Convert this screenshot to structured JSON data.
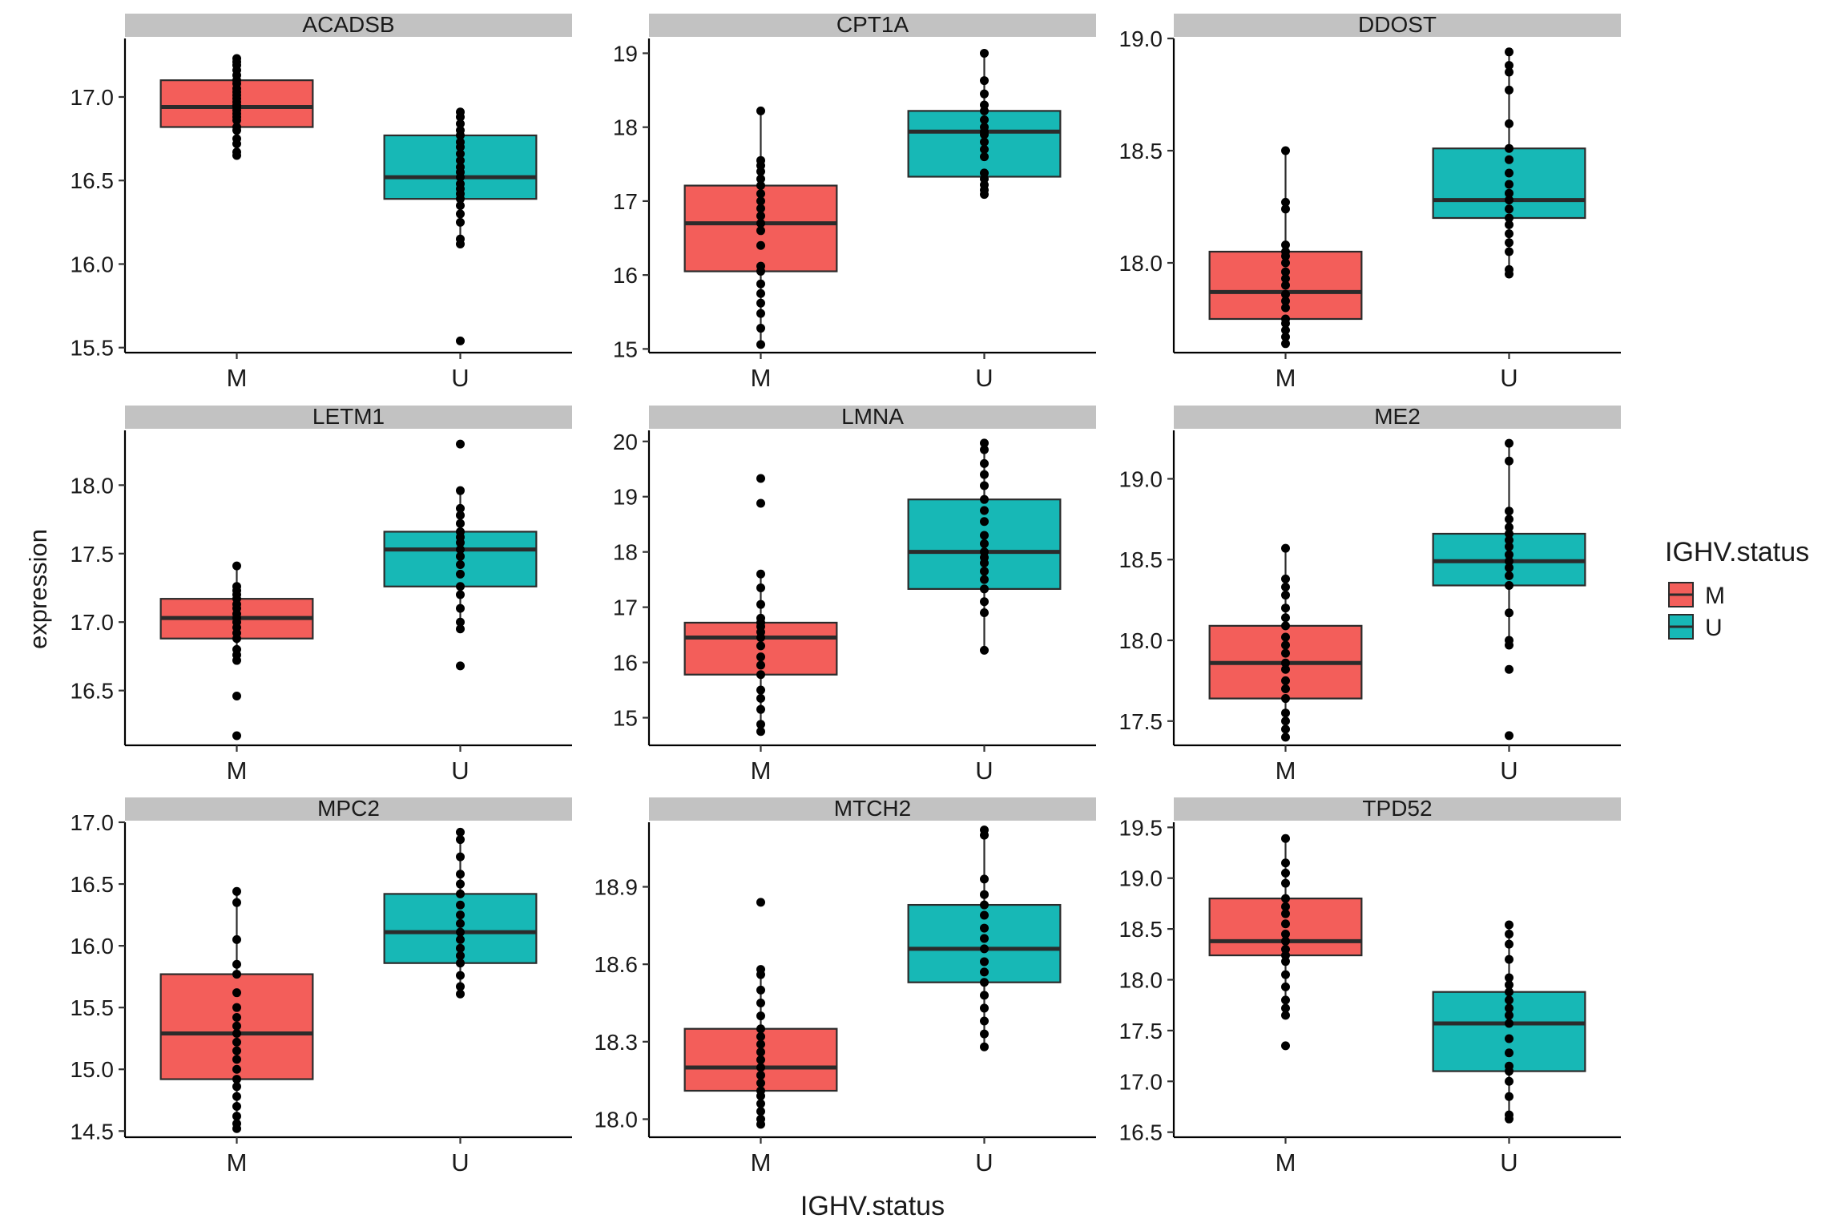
{
  "colors": {
    "M": "#F35E5A",
    "U": "#17B8B6",
    "strip": "#C2C2C2"
  },
  "chart_data": {
    "type": "box",
    "xlabel": "IGHV.status",
    "ylabel": "expression",
    "legend": {
      "title": "IGHV.status",
      "position": "right",
      "entries": [
        "M",
        "U"
      ]
    },
    "categories": [
      "M",
      "U"
    ],
    "panels": [
      {
        "title": "ACADSB",
        "ylim": [
          15.47,
          17.35
        ],
        "yticks": [
          15.5,
          16.0,
          16.5,
          17.0
        ],
        "ytick_labels": [
          "15.5",
          "16.0",
          "16.5",
          "17.0"
        ],
        "groups": [
          {
            "name": "M",
            "q1": 16.82,
            "median": 16.94,
            "q3": 17.1,
            "whisker_low": 16.65,
            "whisker_high": 17.23,
            "points": [
              16.65,
              16.67,
              16.72,
              16.75,
              16.8,
              16.82,
              16.86,
              16.88,
              16.9,
              16.92,
              16.94,
              16.95,
              16.97,
              16.99,
              17.01,
              17.03,
              17.05,
              17.08,
              17.1,
              17.13,
              17.16,
              17.19,
              17.21,
              17.23
            ]
          },
          {
            "name": "U",
            "q1": 16.39,
            "median": 16.52,
            "q3": 16.77,
            "whisker_low": 16.12,
            "whisker_high": 16.91,
            "points": [
              15.54,
              16.12,
              16.15,
              16.25,
              16.3,
              16.35,
              16.39,
              16.42,
              16.45,
              16.48,
              16.52,
              16.55,
              16.58,
              16.62,
              16.66,
              16.7,
              16.73,
              16.77,
              16.8,
              16.84,
              16.88,
              16.91
            ]
          }
        ]
      },
      {
        "title": "CPT1A",
        "ylim": [
          14.95,
          19.2
        ],
        "yticks": [
          15,
          16,
          17,
          18,
          19
        ],
        "ytick_labels": [
          "15",
          "16",
          "17",
          "18",
          "19"
        ],
        "groups": [
          {
            "name": "M",
            "q1": 16.05,
            "median": 16.7,
            "q3": 17.21,
            "whisker_low": 15.06,
            "whisker_high": 18.22,
            "points": [
              15.06,
              15.28,
              15.48,
              15.62,
              15.75,
              15.88,
              16.05,
              16.12,
              16.4,
              16.6,
              16.7,
              16.8,
              16.9,
              17.0,
              17.1,
              17.21,
              17.3,
              17.4,
              17.48,
              17.55,
              18.22
            ]
          },
          {
            "name": "U",
            "q1": 17.33,
            "median": 17.94,
            "q3": 18.22,
            "whisker_low": 17.09,
            "whisker_high": 19.0,
            "points": [
              17.09,
              17.15,
              17.22,
              17.3,
              17.38,
              17.6,
              17.7,
              17.8,
              17.9,
              17.94,
              18.0,
              18.1,
              18.22,
              18.3,
              18.45,
              18.63,
              19.0
            ]
          }
        ]
      },
      {
        "title": "DDOST",
        "ylim": [
          17.6,
          19.0
        ],
        "yticks": [
          18.0,
          18.5,
          19.0
        ],
        "ytick_labels": [
          "18.0",
          "18.5",
          "19.0"
        ],
        "groups": [
          {
            "name": "M",
            "q1": 17.75,
            "median": 17.87,
            "q3": 18.05,
            "whisker_low": 17.64,
            "whisker_high": 18.5,
            "points": [
              17.64,
              17.67,
              17.7,
              17.73,
              17.75,
              17.8,
              17.83,
              17.86,
              17.9,
              17.93,
              17.96,
              18.0,
              18.03,
              18.05,
              18.08,
              18.24,
              18.27,
              18.5
            ]
          },
          {
            "name": "U",
            "q1": 18.2,
            "median": 18.28,
            "q3": 18.51,
            "whisker_low": 17.95,
            "whisker_high": 18.94,
            "points": [
              17.95,
              17.97,
              18.05,
              18.09,
              18.13,
              18.17,
              18.2,
              18.24,
              18.28,
              18.31,
              18.35,
              18.4,
              18.46,
              18.51,
              18.62,
              18.77,
              18.85,
              18.88,
              18.94
            ]
          }
        ]
      },
      {
        "title": "LETM1",
        "ylim": [
          16.1,
          18.4
        ],
        "yticks": [
          16.5,
          17.0,
          17.5,
          18.0
        ],
        "ytick_labels": [
          "16.5",
          "17.0",
          "17.5",
          "18.0"
        ],
        "groups": [
          {
            "name": "M",
            "q1": 16.88,
            "median": 17.03,
            "q3": 17.17,
            "whisker_low": 16.72,
            "whisker_high": 17.41,
            "points": [
              16.17,
              16.46,
              16.72,
              16.76,
              16.8,
              16.88,
              16.92,
              16.96,
              17.0,
              17.03,
              17.06,
              17.1,
              17.13,
              17.17,
              17.2,
              17.23,
              17.26,
              17.41
            ]
          },
          {
            "name": "U",
            "q1": 17.26,
            "median": 17.53,
            "q3": 17.66,
            "whisker_low": 16.95,
            "whisker_high": 17.96,
            "points": [
              16.68,
              16.95,
              17.0,
              17.1,
              17.2,
              17.26,
              17.35,
              17.42,
              17.48,
              17.53,
              17.58,
              17.62,
              17.66,
              17.72,
              17.78,
              17.83,
              17.96,
              18.3
            ]
          }
        ]
      },
      {
        "title": "LMNA",
        "ylim": [
          14.5,
          20.2
        ],
        "yticks": [
          15,
          16,
          17,
          18,
          19,
          20
        ],
        "ytick_labels": [
          "15",
          "16",
          "17",
          "18",
          "19",
          "20"
        ],
        "groups": [
          {
            "name": "M",
            "q1": 15.78,
            "median": 16.45,
            "q3": 16.72,
            "whisker_low": 14.75,
            "whisker_high": 17.6,
            "points": [
              14.75,
              14.88,
              15.15,
              15.35,
              15.5,
              15.78,
              15.95,
              16.1,
              16.3,
              16.45,
              16.55,
              16.65,
              16.72,
              16.8,
              17.05,
              17.35,
              17.6,
              18.88,
              19.33
            ]
          },
          {
            "name": "U",
            "q1": 17.33,
            "median": 18.0,
            "q3": 18.95,
            "whisker_low": 16.22,
            "whisker_high": 19.97,
            "points": [
              16.22,
              16.9,
              17.1,
              17.33,
              17.5,
              17.65,
              17.8,
              17.9,
              18.0,
              18.15,
              18.3,
              18.55,
              18.75,
              18.95,
              19.2,
              19.4,
              19.6,
              19.85,
              19.97
            ]
          }
        ]
      },
      {
        "title": "ME2",
        "ylim": [
          17.35,
          19.3
        ],
        "yticks": [
          17.5,
          18.0,
          18.5,
          19.0
        ],
        "ytick_labels": [
          "17.5",
          "18.0",
          "18.5",
          "19.0"
        ],
        "groups": [
          {
            "name": "M",
            "q1": 17.64,
            "median": 17.86,
            "q3": 18.09,
            "whisker_low": 17.4,
            "whisker_high": 18.57,
            "points": [
              17.4,
              17.45,
              17.5,
              17.55,
              17.64,
              17.7,
              17.75,
              17.82,
              17.86,
              17.92,
              17.97,
              18.02,
              18.09,
              18.14,
              18.2,
              18.28,
              18.33,
              18.38,
              18.57
            ]
          },
          {
            "name": "U",
            "q1": 18.34,
            "median": 18.49,
            "q3": 18.66,
            "whisker_low": 17.97,
            "whisker_high": 19.22,
            "points": [
              17.41,
              17.82,
              17.97,
              18.0,
              18.17,
              18.34,
              18.4,
              18.45,
              18.49,
              18.53,
              18.58,
              18.62,
              18.66,
              18.7,
              18.75,
              18.8,
              19.11,
              19.22
            ]
          }
        ]
      },
      {
        "title": "MPC2",
        "ylim": [
          14.45,
          17.0
        ],
        "yticks": [
          14.5,
          15.0,
          15.5,
          16.0,
          16.5,
          17.0
        ],
        "ytick_labels": [
          "14.5",
          "15.0",
          "15.5",
          "16.0",
          "16.5",
          "17.0"
        ],
        "groups": [
          {
            "name": "M",
            "q1": 14.92,
            "median": 15.29,
            "q3": 15.77,
            "whisker_low": 14.52,
            "whisker_high": 16.44,
            "points": [
              14.52,
              14.56,
              14.62,
              14.7,
              14.78,
              14.86,
              14.92,
              15.0,
              15.08,
              15.15,
              15.22,
              15.29,
              15.35,
              15.42,
              15.5,
              15.62,
              15.77,
              15.85,
              16.05,
              16.35,
              16.44
            ]
          },
          {
            "name": "U",
            "q1": 15.86,
            "median": 16.11,
            "q3": 16.42,
            "whisker_low": 15.61,
            "whisker_high": 16.92,
            "points": [
              15.61,
              15.67,
              15.76,
              15.86,
              15.92,
              15.98,
              16.05,
              16.11,
              16.18,
              16.25,
              16.33,
              16.42,
              16.5,
              16.58,
              16.72,
              16.86,
              16.92
            ]
          }
        ]
      },
      {
        "title": "MTCH2",
        "ylim": [
          17.93,
          19.15
        ],
        "yticks": [
          18.0,
          18.3,
          18.6,
          18.9
        ],
        "ytick_labels": [
          "18.0",
          "18.3",
          "18.6",
          "18.9"
        ],
        "groups": [
          {
            "name": "M",
            "q1": 18.11,
            "median": 18.2,
            "q3": 18.35,
            "whisker_low": 17.98,
            "whisker_high": 18.58,
            "points": [
              17.98,
              18.0,
              18.03,
              18.06,
              18.09,
              18.11,
              18.14,
              18.17,
              18.2,
              18.23,
              18.26,
              18.29,
              18.32,
              18.35,
              18.4,
              18.45,
              18.5,
              18.56,
              18.58,
              18.84
            ]
          },
          {
            "name": "U",
            "q1": 18.53,
            "median": 18.66,
            "q3": 18.83,
            "whisker_low": 18.28,
            "whisker_high": 19.12,
            "points": [
              18.28,
              18.33,
              18.38,
              18.43,
              18.48,
              18.53,
              18.57,
              18.61,
              18.66,
              18.7,
              18.74,
              18.79,
              18.83,
              18.87,
              18.93,
              19.1,
              19.12
            ]
          }
        ]
      },
      {
        "title": "TPD52",
        "ylim": [
          16.45,
          19.55
        ],
        "yticks": [
          16.5,
          17.0,
          17.5,
          18.0,
          18.5,
          19.0,
          19.5
        ],
        "ytick_labels": [
          "16.5",
          "17.0",
          "17.5",
          "18.0",
          "18.5",
          "19.0",
          "19.5"
        ],
        "groups": [
          {
            "name": "M",
            "q1": 18.24,
            "median": 18.38,
            "q3": 18.8,
            "whisker_low": 17.65,
            "whisker_high": 19.39,
            "points": [
              17.35,
              17.65,
              17.72,
              17.8,
              17.93,
              18.05,
              18.18,
              18.24,
              18.3,
              18.38,
              18.45,
              18.55,
              18.65,
              18.72,
              18.8,
              18.95,
              19.05,
              19.15,
              19.39
            ]
          },
          {
            "name": "U",
            "q1": 17.1,
            "median": 17.57,
            "q3": 17.88,
            "whisker_low": 16.63,
            "whisker_high": 18.54,
            "points": [
              16.63,
              16.67,
              16.85,
              17.0,
              17.1,
              17.15,
              17.28,
              17.42,
              17.57,
              17.65,
              17.72,
              17.8,
              17.88,
              17.95,
              18.02,
              18.2,
              18.35,
              18.45,
              18.54
            ]
          }
        ]
      }
    ]
  }
}
